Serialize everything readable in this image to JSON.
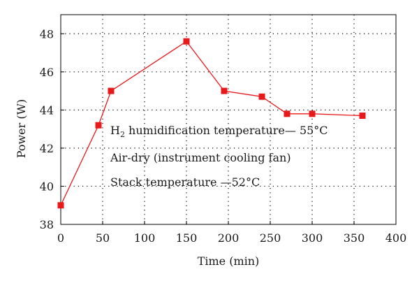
{
  "chart_data": {
    "type": "line",
    "xlabel": "Time (min)",
    "ylabel": "Power (W)",
    "xlim": [
      0,
      400
    ],
    "ylim": [
      38,
      49
    ],
    "x_ticks": [
      0,
      50,
      100,
      150,
      200,
      250,
      300,
      350,
      400
    ],
    "y_ticks": [
      38,
      40,
      42,
      44,
      46,
      48
    ],
    "grid": "dotted",
    "series": [
      {
        "color": "#e8191b",
        "marker": "square",
        "x": [
          0,
          45,
          60,
          150,
          195,
          240,
          270,
          300,
          360
        ],
        "y": [
          39.0,
          43.2,
          45.0,
          47.6,
          45.0,
          44.7,
          43.8,
          43.8,
          43.7
        ]
      }
    ],
    "annotations": [
      {
        "main": "H",
        "sub": "2",
        "rest": " humidification temperature— 55°C"
      },
      {
        "text": "Air-dry (instrument cooling fan)"
      },
      {
        "text": "Stack temperature —52°C"
      }
    ]
  }
}
